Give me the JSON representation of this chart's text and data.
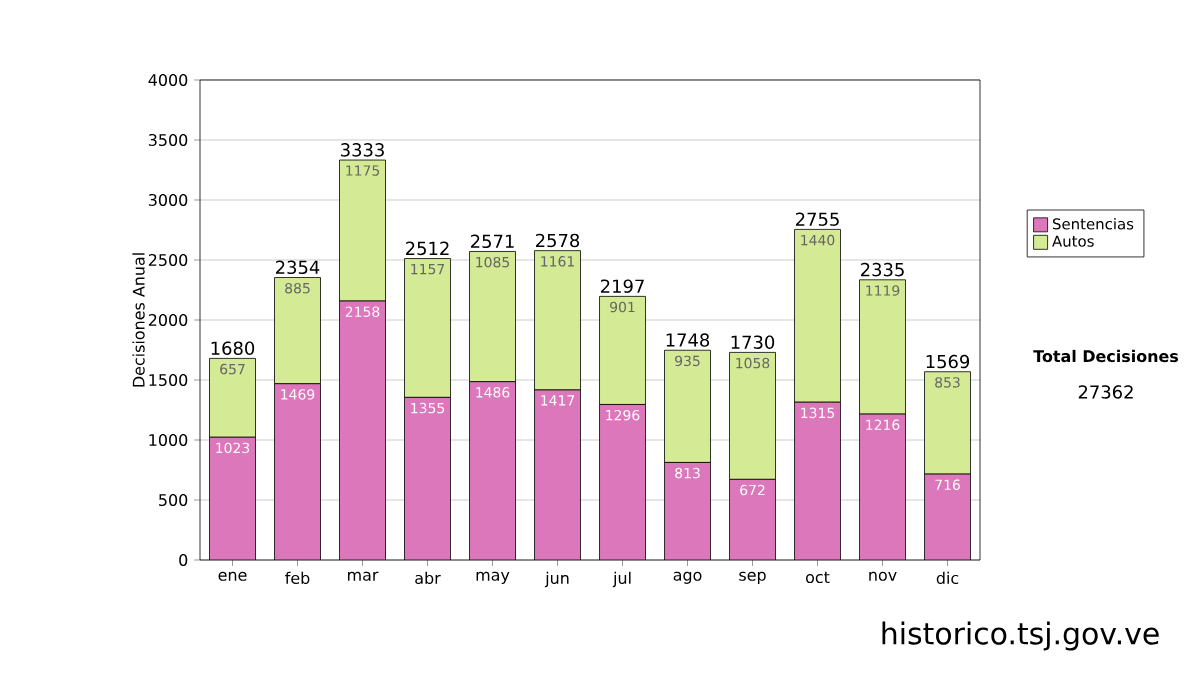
{
  "chart_data": {
    "type": "bar",
    "stacked": true,
    "ylabel": "Decisiones Anual",
    "categories": [
      "ene",
      "feb",
      "mar",
      "abr",
      "may",
      "jun",
      "jul",
      "ago",
      "sep",
      "oct",
      "nov",
      "dic"
    ],
    "series": [
      {
        "name": "Sentencias",
        "color": "#dd77bb",
        "values": [
          1023,
          1469,
          2158,
          1355,
          1486,
          1417,
          1296,
          813,
          672,
          1315,
          1216,
          716
        ]
      },
      {
        "name": "Autos",
        "color": "#d4ea94",
        "values": [
          657,
          885,
          1175,
          1157,
          1085,
          1161,
          901,
          935,
          1058,
          1440,
          1119,
          853
        ]
      }
    ],
    "totals": [
      "1680",
      "2354",
      "3333",
      "2512",
      "2571",
      "2578",
      "2197",
      "1748",
      "1730",
      "2755",
      "2335",
      "1569"
    ],
    "data_labels": true,
    "ylim": [
      0,
      4000
    ],
    "yticks": [
      0,
      500,
      1000,
      1500,
      2000,
      2500,
      3000,
      3500,
      4000
    ],
    "grid": "y",
    "legend": "right",
    "annotations": [
      "Total Decisiones",
      "27362",
      "historico.tsj.gov.ve"
    ]
  }
}
